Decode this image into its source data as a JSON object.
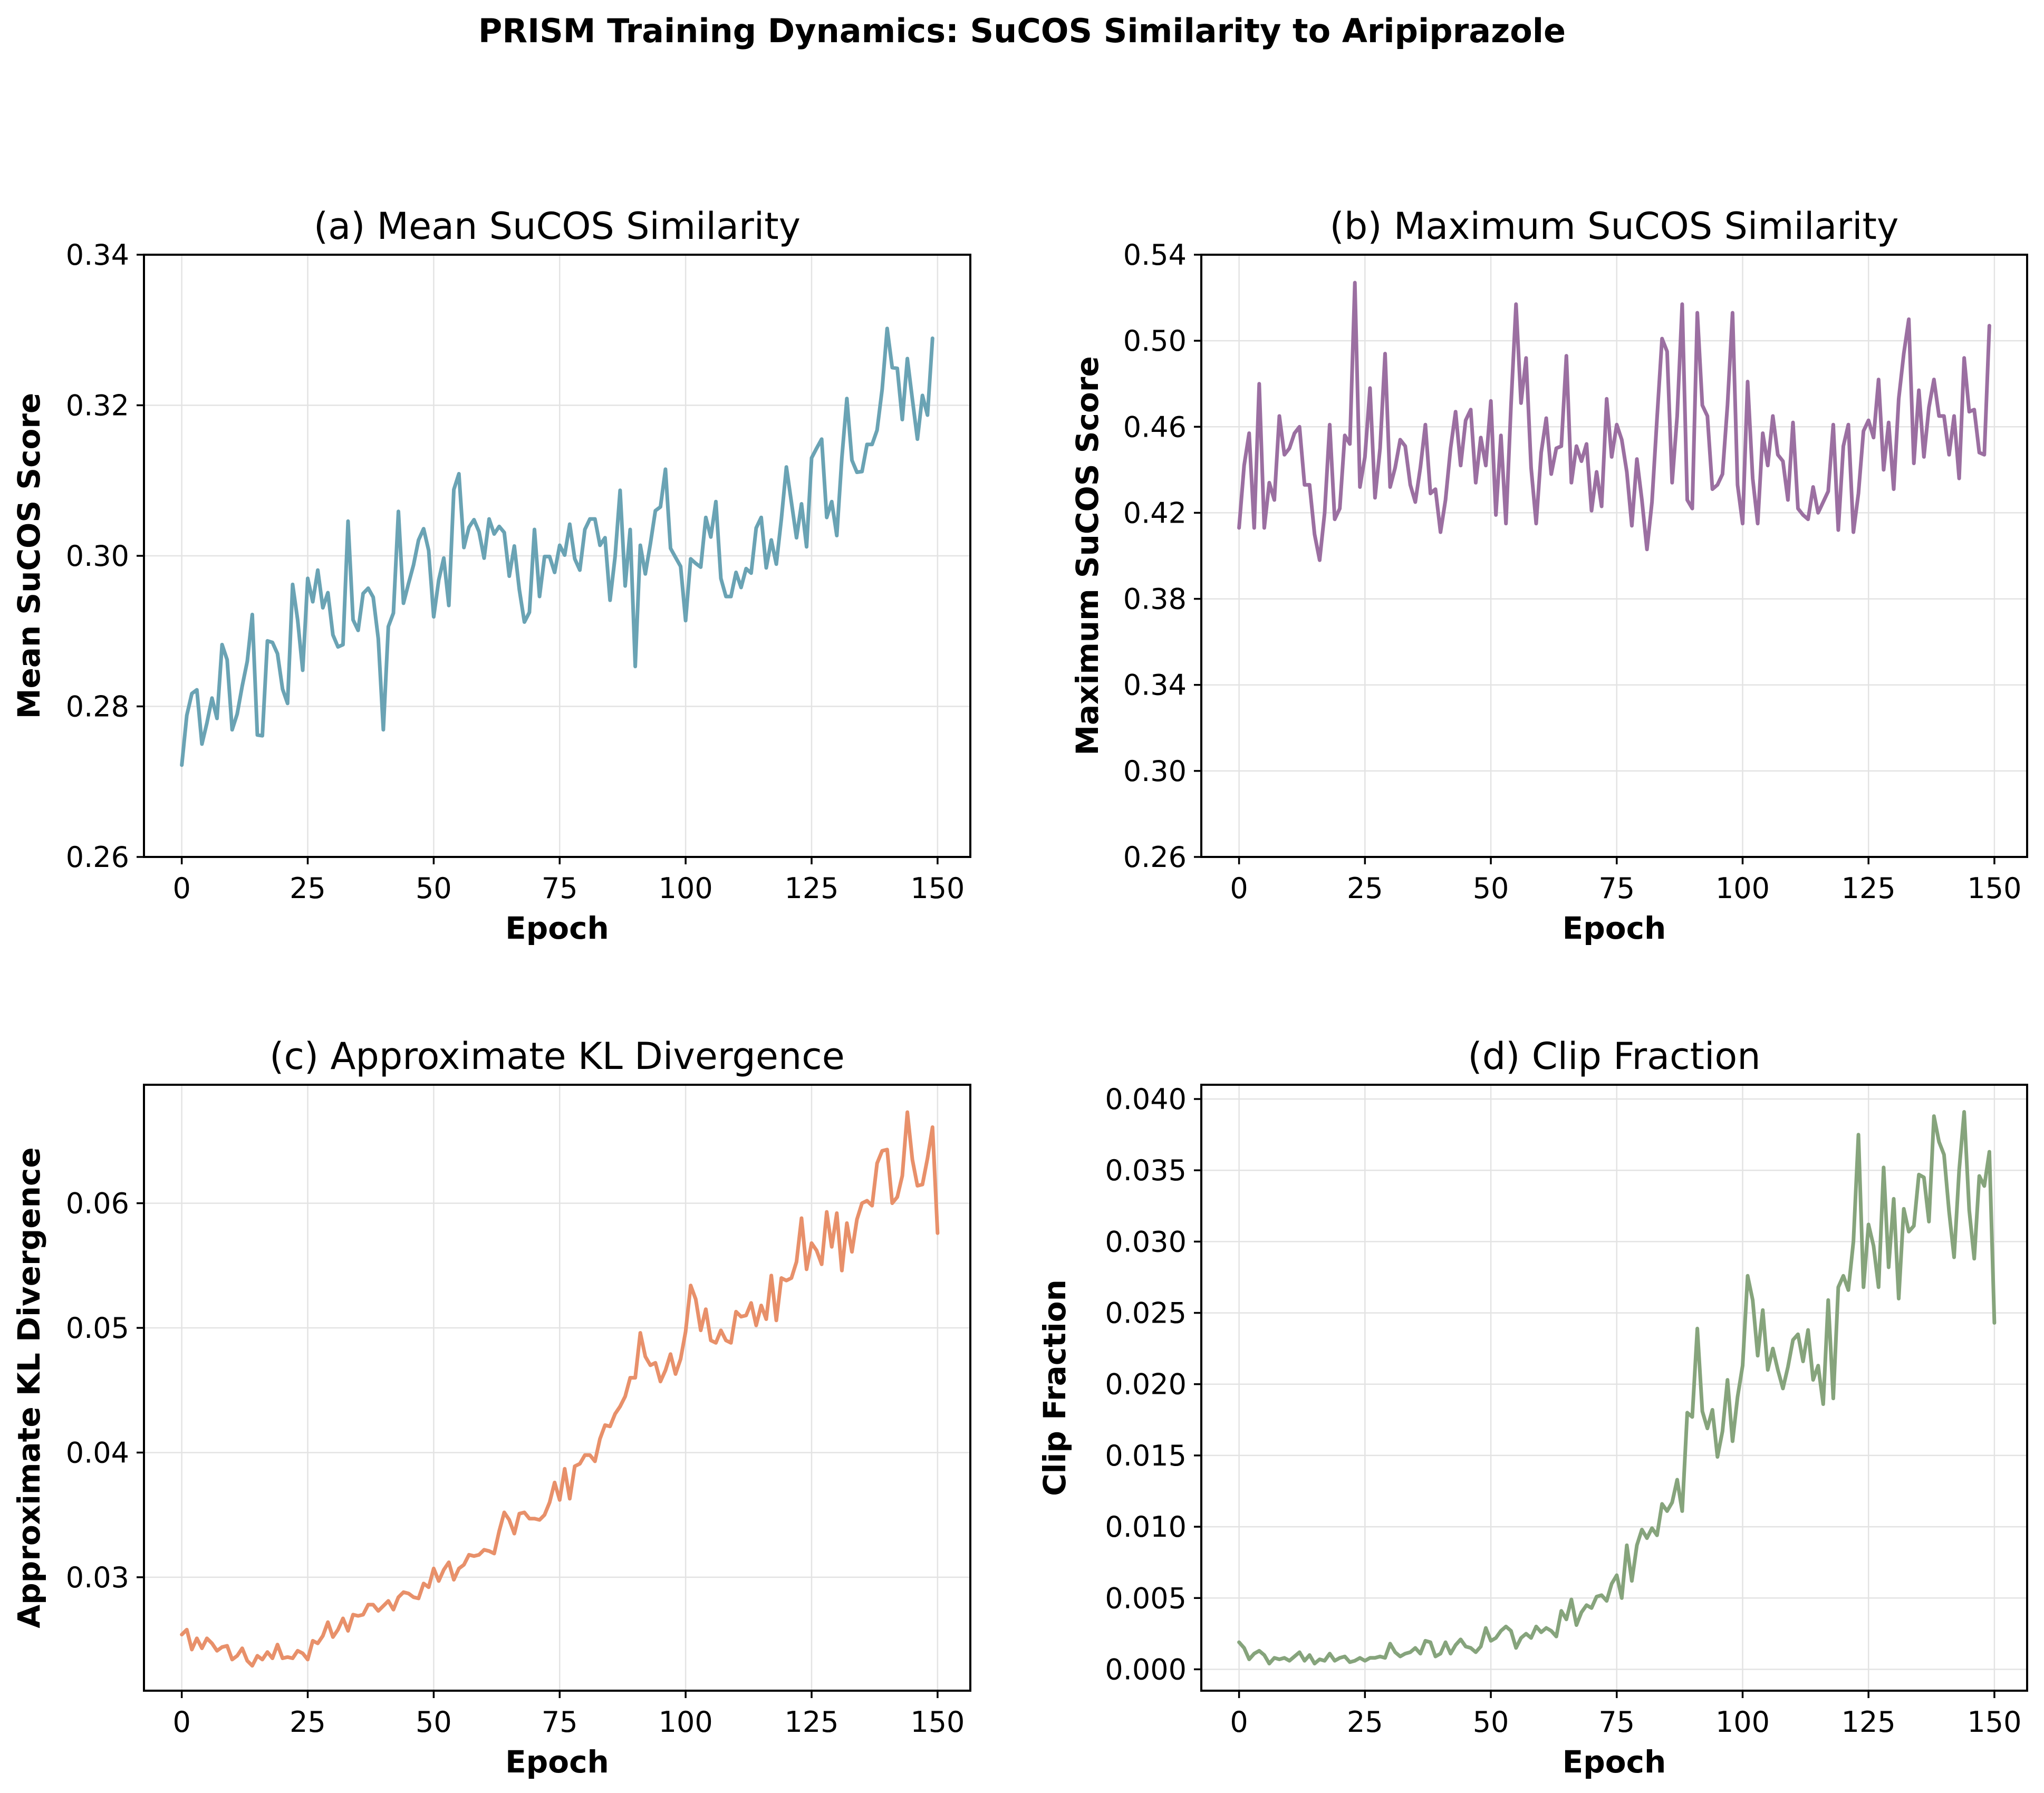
{
  "suptitle": "PRISM Training Dynamics: SuCOS Similarity to Aripiprazole",
  "chart_data": [
    {
      "type": "line",
      "title": "(a) Mean SuCOS Similarity",
      "xlabel": "Epoch",
      "ylabel": "Mean SuCOS Score",
      "color": "#6aa3b4",
      "xlim": [
        -7.5,
        156.5
      ],
      "ylim": [
        0.26,
        0.34
      ],
      "xticks": [
        0,
        25,
        50,
        75,
        100,
        125,
        150
      ],
      "xtick_labels": [
        "0",
        "25",
        "50",
        "75",
        "100",
        "125",
        "150"
      ],
      "yticks": [
        0.26,
        0.28,
        0.3,
        0.32,
        0.34
      ],
      "ytick_labels": [
        "0.26",
        "0.28",
        "0.30",
        "0.32",
        "0.34"
      ],
      "grid": true,
      "series": [
        {
          "values": [
            0.2722,
            0.2788,
            0.2817,
            0.2822,
            0.275,
            0.2778,
            0.2811,
            0.2784,
            0.2882,
            0.2862,
            0.2769,
            0.279,
            0.2827,
            0.286,
            0.2922,
            0.2762,
            0.2761,
            0.2887,
            0.2885,
            0.287,
            0.2823,
            0.2804,
            0.2962,
            0.2915,
            0.2848,
            0.297,
            0.2939,
            0.2981,
            0.2931,
            0.2951,
            0.2895,
            0.2879,
            0.2882,
            0.3046,
            0.2915,
            0.2901,
            0.295,
            0.2957,
            0.2945,
            0.289,
            0.2769,
            0.2906,
            0.2924,
            0.3059,
            0.2937,
            0.2963,
            0.2988,
            0.3021,
            0.3036,
            0.3007,
            0.2919,
            0.2968,
            0.2997,
            0.2934,
            0.3088,
            0.3109,
            0.3011,
            0.3038,
            0.3048,
            0.3032,
            0.2997,
            0.3049,
            0.3029,
            0.3039,
            0.3031,
            0.2973,
            0.3013,
            0.2955,
            0.2912,
            0.2925,
            0.3035,
            0.2946,
            0.2999,
            0.2999,
            0.2978,
            0.3014,
            0.3001,
            0.3042,
            0.2996,
            0.2981,
            0.3035,
            0.3049,
            0.3049,
            0.3014,
            0.3024,
            0.2941,
            0.2999,
            0.3087,
            0.296,
            0.3035,
            0.2853,
            0.3014,
            0.2976,
            0.3016,
            0.306,
            0.3065,
            0.3115,
            0.301,
            0.2998,
            0.2986,
            0.2914,
            0.2996,
            0.299,
            0.2985,
            0.3051,
            0.3025,
            0.3072,
            0.297,
            0.2946,
            0.2946,
            0.2978,
            0.2958,
            0.2983,
            0.2977,
            0.3037,
            0.3051,
            0.2984,
            0.3021,
            0.2989,
            0.3049,
            0.3118,
            0.3071,
            0.3024,
            0.3069,
            0.3012,
            0.313,
            0.3143,
            0.3155,
            0.3051,
            0.3072,
            0.3027,
            0.313,
            0.3209,
            0.3127,
            0.3111,
            0.3112,
            0.3148,
            0.3148,
            0.3167,
            0.3221,
            0.3302,
            0.325,
            0.3249,
            0.3181,
            0.3262,
            0.3208,
            0.3155,
            0.3213,
            0.3187,
            0.3289
          ]
        }
      ]
    },
    {
      "type": "line",
      "title": "(b) Maximum SuCOS Similarity",
      "xlabel": "Epoch",
      "ylabel": "Maximum SuCOS Score",
      "color": "#9b6fa1",
      "xlim": [
        -7.5,
        156.5
      ],
      "ylim": [
        0.26,
        0.54
      ],
      "xticks": [
        0,
        25,
        50,
        75,
        100,
        125,
        150
      ],
      "xtick_labels": [
        "0",
        "25",
        "50",
        "75",
        "100",
        "125",
        "150"
      ],
      "yticks": [
        0.26,
        0.3,
        0.34,
        0.38,
        0.42,
        0.46,
        0.5,
        0.54
      ],
      "ytick_labels": [
        "0.26",
        "0.30",
        "0.34",
        "0.38",
        "0.42",
        "0.46",
        "0.50",
        "0.54"
      ],
      "grid": true,
      "series": [
        {
          "values": [
            0.413,
            0.442,
            0.457,
            0.413,
            0.48,
            0.413,
            0.434,
            0.426,
            0.465,
            0.447,
            0.45,
            0.457,
            0.46,
            0.433,
            0.433,
            0.41,
            0.398,
            0.42,
            0.461,
            0.417,
            0.422,
            0.456,
            0.452,
            0.527,
            0.432,
            0.446,
            0.478,
            0.427,
            0.45,
            0.494,
            0.432,
            0.441,
            0.454,
            0.451,
            0.433,
            0.425,
            0.441,
            0.461,
            0.429,
            0.431,
            0.411,
            0.426,
            0.45,
            0.467,
            0.442,
            0.463,
            0.468,
            0.434,
            0.455,
            0.442,
            0.472,
            0.419,
            0.456,
            0.415,
            0.47,
            0.517,
            0.471,
            0.492,
            0.441,
            0.415,
            0.448,
            0.464,
            0.438,
            0.45,
            0.451,
            0.493,
            0.434,
            0.451,
            0.444,
            0.452,
            0.421,
            0.439,
            0.423,
            0.473,
            0.446,
            0.461,
            0.454,
            0.439,
            0.414,
            0.445,
            0.426,
            0.403,
            0.425,
            0.464,
            0.501,
            0.495,
            0.434,
            0.465,
            0.517,
            0.426,
            0.422,
            0.513,
            0.47,
            0.465,
            0.431,
            0.433,
            0.438,
            0.47,
            0.513,
            0.433,
            0.415,
            0.481,
            0.436,
            0.415,
            0.457,
            0.442,
            0.465,
            0.447,
            0.444,
            0.426,
            0.462,
            0.422,
            0.419,
            0.417,
            0.432,
            0.42,
            0.425,
            0.43,
            0.461,
            0.412,
            0.451,
            0.461,
            0.411,
            0.429,
            0.458,
            0.463,
            0.455,
            0.482,
            0.44,
            0.462,
            0.431,
            0.473,
            0.494,
            0.51,
            0.443,
            0.477,
            0.446,
            0.469,
            0.482,
            0.465,
            0.465,
            0.447,
            0.465,
            0.436,
            0.492,
            0.467,
            0.468,
            0.448,
            0.447,
            0.507
          ]
        }
      ]
    },
    {
      "type": "line",
      "title": "(c) Approximate KL Divergence",
      "xlabel": "Epoch",
      "ylabel": "Approximate KL Divergence",
      "color": "#e8906a",
      "xlim": [
        -7.5,
        156.5
      ],
      "ylim": [
        0.0209,
        0.0695
      ],
      "xticks": [
        0,
        25,
        50,
        75,
        100,
        125,
        150
      ],
      "xtick_labels": [
        "0",
        "25",
        "50",
        "75",
        "100",
        "125",
        "150"
      ],
      "yticks": [
        0.03,
        0.04,
        0.05,
        0.06
      ],
      "ytick_labels": [
        "0.03",
        "0.04",
        "0.05",
        "0.06"
      ],
      "grid": true,
      "series": [
        {
          "values": [
            0.0254,
            0.0258,
            0.0242,
            0.0251,
            0.0243,
            0.0251,
            0.0247,
            0.0241,
            0.0244,
            0.0245,
            0.0234,
            0.0237,
            0.0243,
            0.0233,
            0.0229,
            0.0237,
            0.0234,
            0.024,
            0.0235,
            0.0246,
            0.0235,
            0.0236,
            0.0235,
            0.0241,
            0.0239,
            0.0234,
            0.0249,
            0.0247,
            0.0253,
            0.0264,
            0.0252,
            0.0258,
            0.0267,
            0.0257,
            0.027,
            0.0269,
            0.027,
            0.0278,
            0.0278,
            0.0273,
            0.0277,
            0.0281,
            0.0274,
            0.0284,
            0.0288,
            0.0287,
            0.0284,
            0.0283,
            0.0295,
            0.0292,
            0.0307,
            0.0297,
            0.0306,
            0.0312,
            0.0298,
            0.0307,
            0.031,
            0.0318,
            0.0317,
            0.0318,
            0.0322,
            0.0321,
            0.0319,
            0.0337,
            0.0352,
            0.0346,
            0.0335,
            0.0351,
            0.0352,
            0.0347,
            0.0347,
            0.0346,
            0.035,
            0.036,
            0.0376,
            0.0362,
            0.0387,
            0.0363,
            0.0389,
            0.0391,
            0.0398,
            0.0398,
            0.0393,
            0.0411,
            0.0422,
            0.0421,
            0.0431,
            0.0437,
            0.0445,
            0.046,
            0.046,
            0.0496,
            0.0477,
            0.047,
            0.0472,
            0.0457,
            0.0466,
            0.0479,
            0.0463,
            0.0475,
            0.0497,
            0.0534,
            0.0523,
            0.0498,
            0.0515,
            0.049,
            0.0488,
            0.0498,
            0.049,
            0.0488,
            0.0513,
            0.0509,
            0.051,
            0.052,
            0.0502,
            0.0518,
            0.0507,
            0.0542,
            0.0506,
            0.054,
            0.0538,
            0.054,
            0.0553,
            0.0588,
            0.0547,
            0.0568,
            0.0562,
            0.0551,
            0.0593,
            0.0565,
            0.0592,
            0.0546,
            0.0584,
            0.0561,
            0.0587,
            0.06,
            0.0602,
            0.0598,
            0.0632,
            0.0642,
            0.0643,
            0.06,
            0.0605,
            0.0622,
            0.0673,
            0.0635,
            0.0614,
            0.0615,
            0.0636,
            0.0661,
            0.0576
          ]
        }
      ]
    },
    {
      "type": "line",
      "title": "(d) Clip Fraction",
      "xlabel": "Epoch",
      "ylabel": "Clip Fraction",
      "color": "#86a47c",
      "xlim": [
        -7.5,
        156.5
      ],
      "ylim": [
        -0.0015,
        0.041
      ],
      "xticks": [
        0,
        25,
        50,
        75,
        100,
        125,
        150
      ],
      "xtick_labels": [
        "0",
        "25",
        "50",
        "75",
        "100",
        "125",
        "150"
      ],
      "yticks": [
        0.0,
        0.005,
        0.01,
        0.015,
        0.02,
        0.025,
        0.03,
        0.035,
        0.04
      ],
      "ytick_labels": [
        "0.000",
        "0.005",
        "0.010",
        "0.015",
        "0.020",
        "0.025",
        "0.030",
        "0.035",
        "0.040"
      ],
      "grid": true,
      "series": [
        {
          "values": [
            0.0019,
            0.0015,
            0.0007,
            0.0011,
            0.0013,
            0.001,
            0.0004,
            0.0008,
            0.0007,
            0.0008,
            0.0006,
            0.0009,
            0.0012,
            0.0006,
            0.001,
            0.0004,
            0.0007,
            0.0006,
            0.0011,
            0.0006,
            0.0008,
            0.0009,
            0.0005,
            0.0006,
            0.0008,
            0.0006,
            0.0008,
            0.0008,
            0.0009,
            0.0008,
            0.0018,
            0.0012,
            0.0009,
            0.0011,
            0.0012,
            0.0015,
            0.0011,
            0.002,
            0.0019,
            0.0009,
            0.0011,
            0.0019,
            0.0011,
            0.0017,
            0.0021,
            0.0016,
            0.0015,
            0.0012,
            0.0016,
            0.0029,
            0.002,
            0.0022,
            0.0027,
            0.003,
            0.0027,
            0.0015,
            0.0022,
            0.0025,
            0.0022,
            0.003,
            0.0026,
            0.0029,
            0.0027,
            0.0023,
            0.0041,
            0.0035,
            0.0049,
            0.0031,
            0.004,
            0.0045,
            0.0043,
            0.0051,
            0.0052,
            0.0048,
            0.006,
            0.0066,
            0.005,
            0.0087,
            0.0062,
            0.0087,
            0.0098,
            0.0092,
            0.0099,
            0.0094,
            0.0116,
            0.0111,
            0.0117,
            0.0133,
            0.0111,
            0.018,
            0.0177,
            0.0239,
            0.0181,
            0.0169,
            0.0182,
            0.0149,
            0.0167,
            0.0203,
            0.016,
            0.0191,
            0.0213,
            0.0276,
            0.0259,
            0.022,
            0.0252,
            0.021,
            0.0225,
            0.021,
            0.0197,
            0.0212,
            0.0231,
            0.0235,
            0.0216,
            0.0238,
            0.0203,
            0.0213,
            0.0186,
            0.0259,
            0.019,
            0.0268,
            0.0276,
            0.0266,
            0.03,
            0.0375,
            0.0268,
            0.0312,
            0.0297,
            0.0268,
            0.0352,
            0.0282,
            0.033,
            0.026,
            0.0323,
            0.0307,
            0.0311,
            0.0347,
            0.0345,
            0.0314,
            0.0388,
            0.037,
            0.0361,
            0.0321,
            0.0289,
            0.035,
            0.0391,
            0.0322,
            0.0288,
            0.0346,
            0.0339,
            0.0363,
            0.0243
          ]
        }
      ]
    }
  ]
}
